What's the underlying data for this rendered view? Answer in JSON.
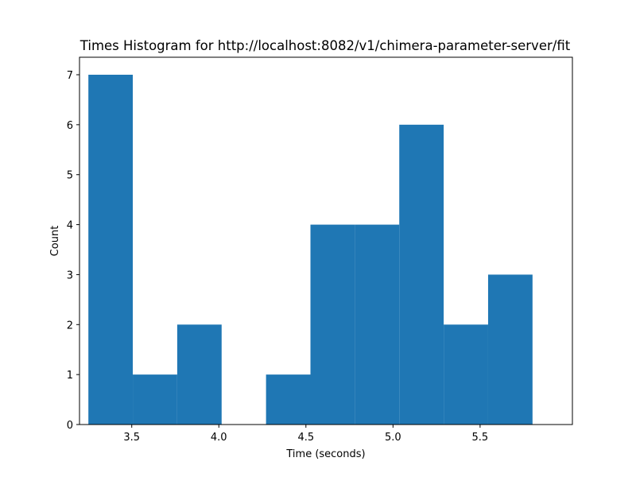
{
  "chart_data": {
    "type": "bar",
    "title": "Times Histogram for http://localhost:8082/v1/chimera-parameter-server/fit",
    "xlabel": "Time (seconds)",
    "ylabel": "Count",
    "xlim": [
      3.2,
      6.03
    ],
    "ylim": [
      0,
      7.35
    ],
    "grid": false,
    "bar_color": "#1f77b4",
    "bins": [
      {
        "x0": 3.251,
        "x1": 3.506,
        "count": 7
      },
      {
        "x0": 3.506,
        "x1": 3.761,
        "count": 1
      },
      {
        "x0": 3.761,
        "x1": 4.016,
        "count": 2
      },
      {
        "x0": 4.016,
        "x1": 4.271,
        "count": 0
      },
      {
        "x0": 4.271,
        "x1": 4.526,
        "count": 1
      },
      {
        "x0": 4.526,
        "x1": 4.781,
        "count": 4
      },
      {
        "x0": 4.781,
        "x1": 5.036,
        "count": 4
      },
      {
        "x0": 5.036,
        "x1": 5.291,
        "count": 6
      },
      {
        "x0": 5.291,
        "x1": 5.546,
        "count": 2
      },
      {
        "x0": 5.546,
        "x1": 5.801,
        "count": 3
      }
    ],
    "x_ticks": [
      {
        "value": 3.5,
        "label": "3.5"
      },
      {
        "value": 4.0,
        "label": "4.0"
      },
      {
        "value": 4.5,
        "label": "4.5"
      },
      {
        "value": 5.0,
        "label": "5.0"
      },
      {
        "value": 5.5,
        "label": "5.5"
      }
    ],
    "y_ticks": [
      {
        "value": 0,
        "label": "0"
      },
      {
        "value": 1,
        "label": "1"
      },
      {
        "value": 2,
        "label": "2"
      },
      {
        "value": 3,
        "label": "3"
      },
      {
        "value": 4,
        "label": "4"
      },
      {
        "value": 5,
        "label": "5"
      },
      {
        "value": 6,
        "label": "6"
      },
      {
        "value": 7,
        "label": "7"
      }
    ]
  }
}
